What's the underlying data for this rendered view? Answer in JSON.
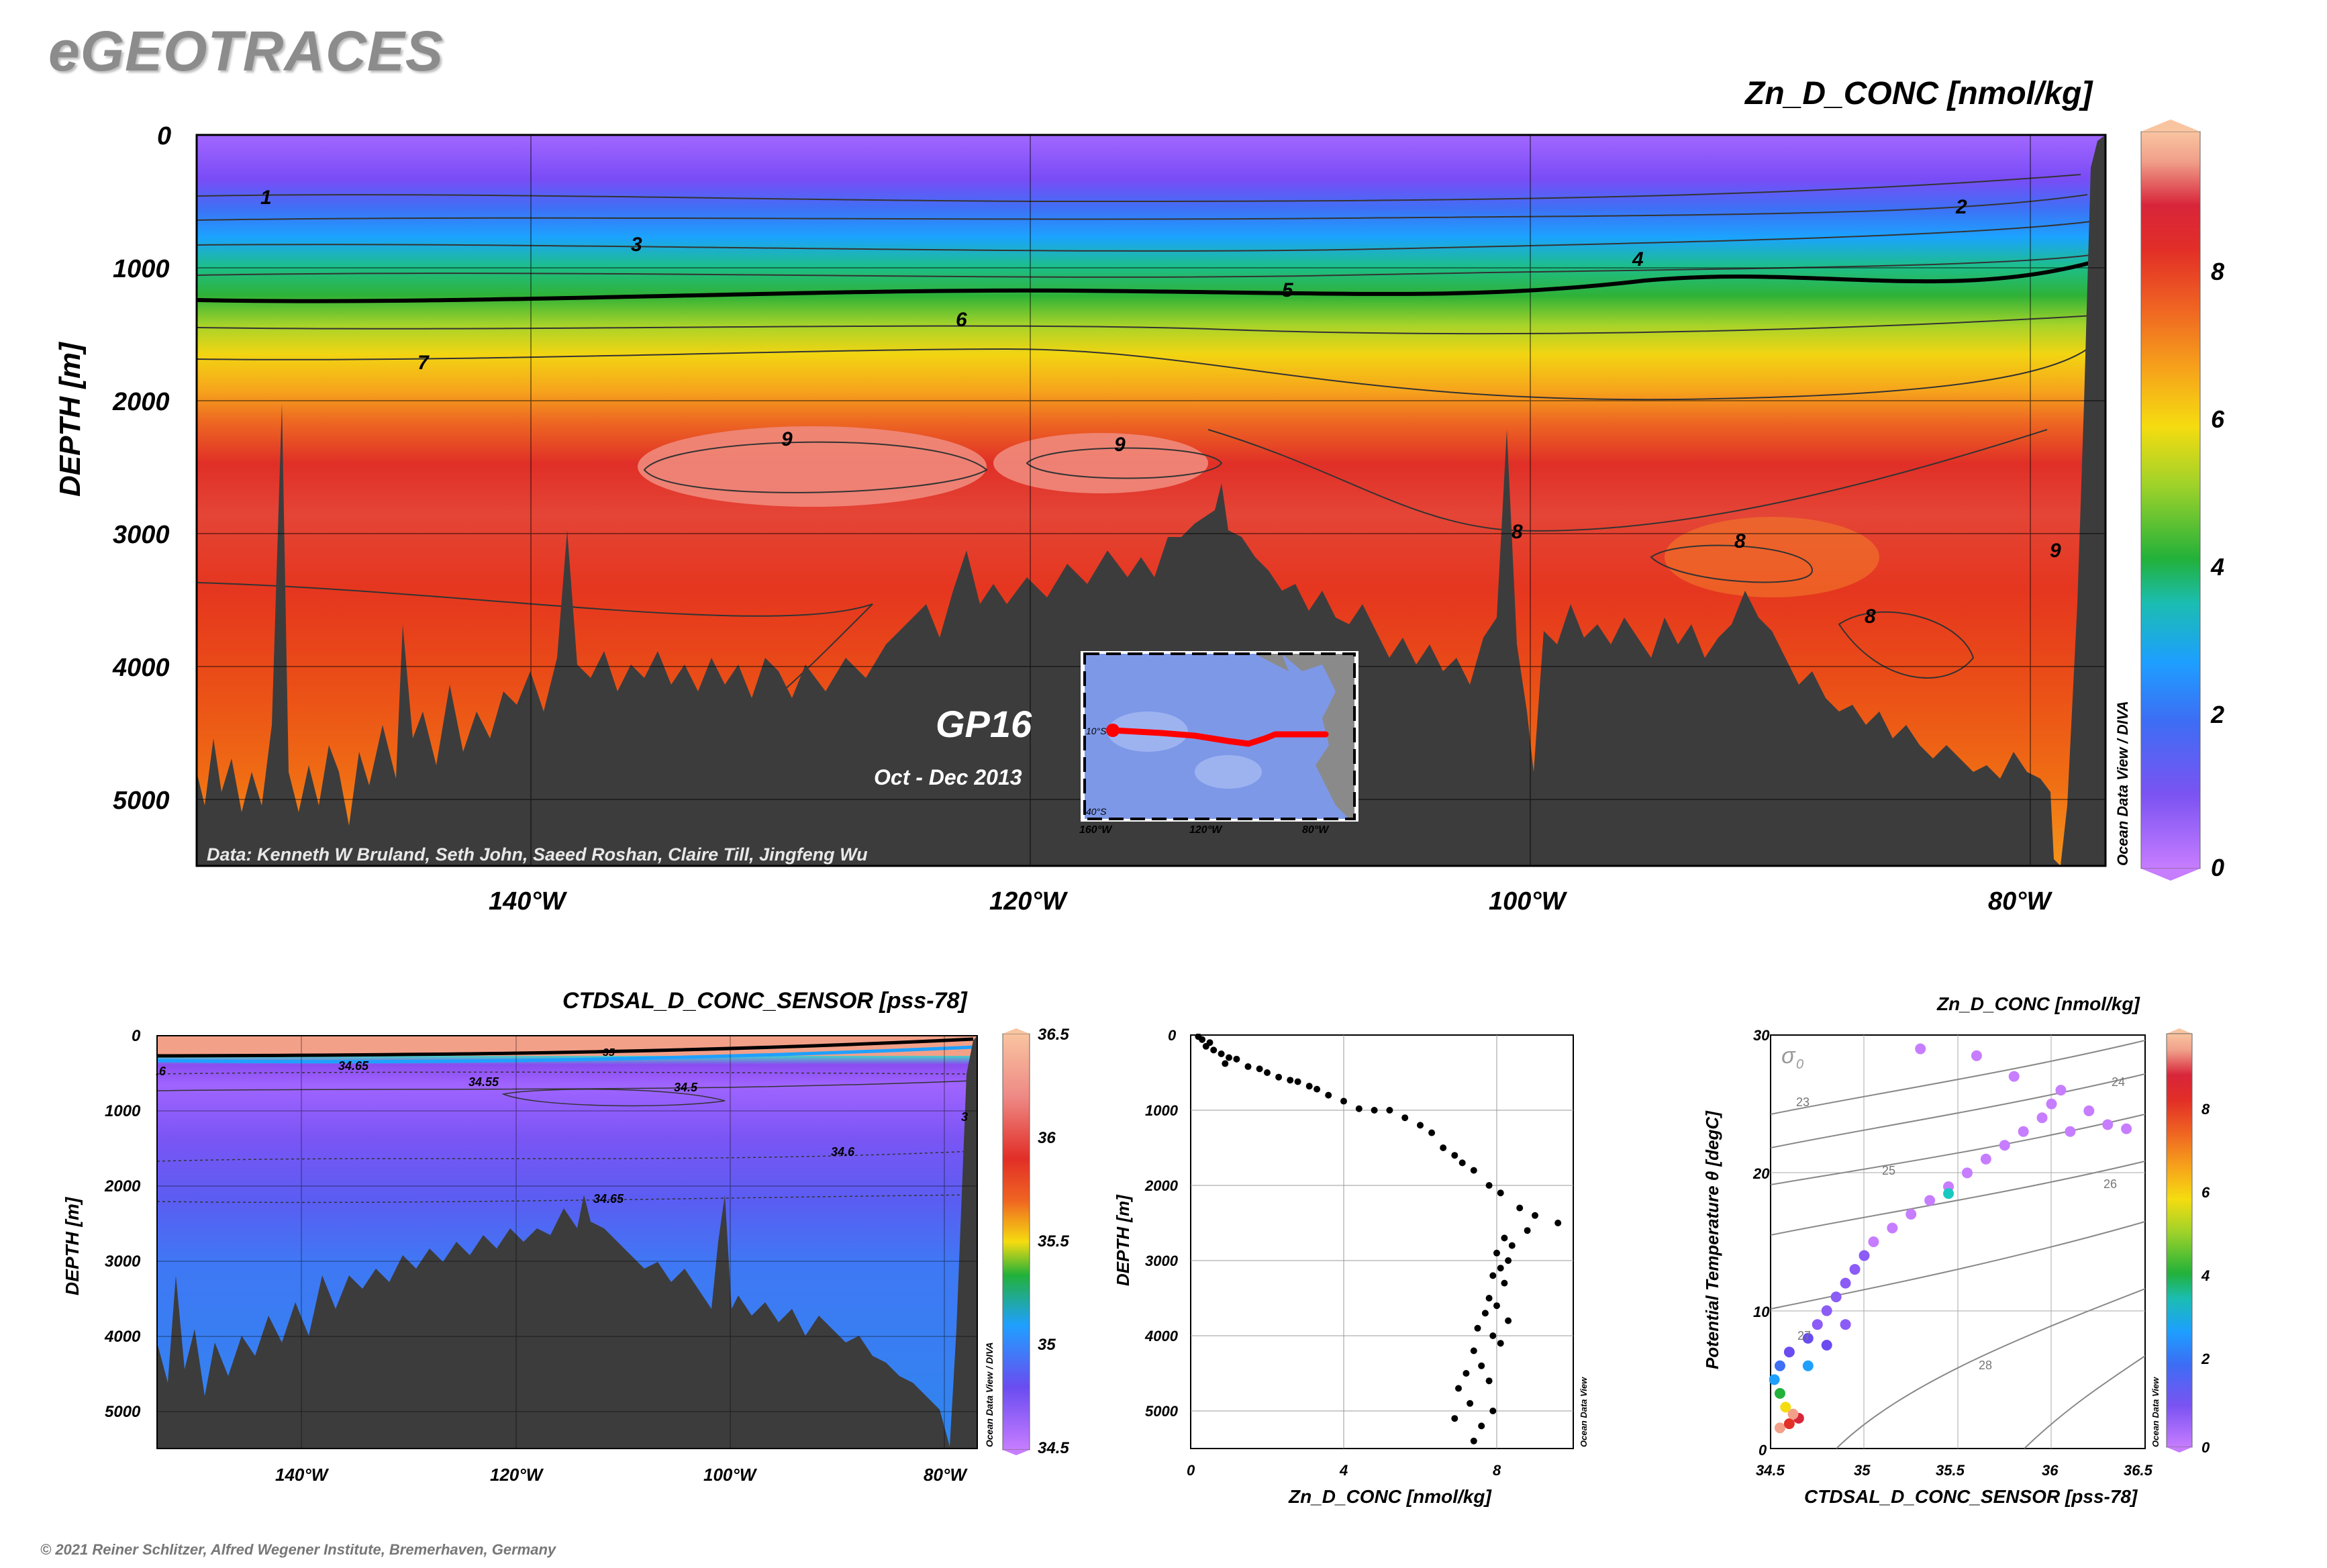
{
  "brand": "eGEOTRACES",
  "footer": "© 2021 Reiner Schlitzer, Alfred Wegener Institute, Bremerhaven, Germany",
  "colors": {
    "bathymetry": "#3c3c3c",
    "cmap": [
      "#c77dff",
      "#8b5cf6",
      "#6a4cf0",
      "#3f6ff5",
      "#1fa0ff",
      "#19c9c0",
      "#22b13a",
      "#9fd22a",
      "#f5dc10",
      "#f7a51a",
      "#f06a22",
      "#e33127",
      "#d8253a",
      "#f2a08a",
      "#f9c4a0"
    ]
  },
  "main": {
    "title": "Zn_D_CONC [nmol/kg]",
    "ylabel": "DEPTH [m]",
    "credit": "Data: Kenneth W Bruland, Seth John, Saeed Roshan, Claire Till, Jingfeng Wu",
    "cruise": "GP16",
    "dates": "Oct - Dec 2013",
    "side_text": "Ocean Data View / DIVA",
    "yticks": [
      "0",
      "1000",
      "2000",
      "3000",
      "4000",
      "5000"
    ],
    "xticks": [
      "140°W",
      "120°W",
      "100°W",
      "80°W"
    ],
    "cbar_ticks": [
      "0",
      "2",
      "4",
      "6",
      "8"
    ],
    "contour_labels": [
      "1",
      "2",
      "3",
      "4",
      "5",
      "6",
      "7",
      "8",
      "9"
    ],
    "inset": {
      "lat_labels": [
        "10°S",
        "40°S"
      ],
      "lon_labels": [
        "160°W",
        "120°W",
        "80°W"
      ],
      "side_text": "Ocean Data View"
    }
  },
  "salinity": {
    "title": "CTDSAL_D_CONC_SENSOR [pss-78]",
    "ylabel": "DEPTH [m]",
    "side_text": "Ocean Data View / DIVA",
    "yticks": [
      "0",
      "1000",
      "2000",
      "3000",
      "4000",
      "5000"
    ],
    "xticks": [
      "140°W",
      "120°W",
      "100°W",
      "80°W"
    ],
    "cbar_ticks": [
      "34.5",
      "35",
      "35.5",
      "36",
      "36.5"
    ],
    "contour_labels": [
      "34.65",
      "34.55",
      "34.5",
      "34.6",
      "34.65",
      "35",
      "3",
      ".6"
    ]
  },
  "profile": {
    "xlabel": "Zn_D_CONC [nmol/kg]",
    "ylabel": "DEPTH [m]",
    "side_text": "Ocean Data View",
    "yticks": [
      "0",
      "1000",
      "2000",
      "3000",
      "4000",
      "5000"
    ],
    "xticks": [
      "0",
      "4",
      "8"
    ]
  },
  "ts": {
    "title": "Zn_D_CONC [nmol/kg]",
    "xlabel": "CTDSAL_D_CONC_SENSOR [pss-78]",
    "ylabel": "Potential Temperature θ [degC]",
    "side_text": "Ocean Data View",
    "sigma_label": "σ",
    "sigma_sub": "0",
    "isopycnal_labels": [
      "23",
      "24",
      "25",
      "26",
      "27",
      "28"
    ],
    "xticks": [
      "34.5",
      "35",
      "35.5",
      "36",
      "36.5"
    ],
    "yticks": [
      "0",
      "10",
      "20",
      "30"
    ],
    "cbar_ticks": [
      "0",
      "2",
      "4",
      "6",
      "8"
    ]
  },
  "chart_data": [
    {
      "type": "heatmap",
      "title": "Zn_D_CONC [nmol/kg]",
      "ylabel": "DEPTH [m]",
      "xlim": [
        -155,
        -77
      ],
      "ylim": [
        5500,
        0
      ],
      "x_ticks": [
        "140°W",
        "120°W",
        "100°W",
        "80°W"
      ],
      "y_ticks": [
        0,
        1000,
        2000,
        3000,
        4000,
        5000
      ],
      "colorbar_range": [
        0,
        10
      ],
      "contours": [
        {
          "level": 1,
          "depth_m": 470
        },
        {
          "level": 2,
          "depth_m": 560
        },
        {
          "level": 3,
          "depth_m": 820
        },
        {
          "level": 4,
          "depth_m": 1000
        },
        {
          "level": 5,
          "depth_m": 1180
        },
        {
          "level": 6,
          "depth_m": 1430
        },
        {
          "level": 7,
          "depth_m": 1700
        },
        {
          "level": 8,
          "depth_m": 3000
        },
        {
          "level": 9,
          "depth_m": 2450
        }
      ],
      "depth_profile_zn": [
        {
          "depth": 0,
          "zn": 0.2
        },
        {
          "depth": 500,
          "zn": 1.0
        },
        {
          "depth": 800,
          "zn": 3.0
        },
        {
          "depth": 1000,
          "zn": 4.0
        },
        {
          "depth": 1200,
          "zn": 5.0
        },
        {
          "depth": 1500,
          "zn": 6.2
        },
        {
          "depth": 1800,
          "zn": 7.0
        },
        {
          "depth": 2500,
          "zn": 9.0
        },
        {
          "depth": 3200,
          "zn": 8.3
        },
        {
          "depth": 4200,
          "zn": 7.6
        },
        {
          "depth": 5000,
          "zn": 7.2
        }
      ]
    },
    {
      "type": "heatmap",
      "title": "CTDSAL_D_CONC_SENSOR [pss-78]",
      "ylabel": "DEPTH [m]",
      "xlim": [
        -155,
        -77
      ],
      "ylim": [
        5500,
        0
      ],
      "colorbar_range": [
        34.5,
        36.5
      ],
      "contours": [
        {
          "level": 34.65,
          "depth_m": 400
        },
        {
          "level": 34.55,
          "depth_m": 600
        },
        {
          "level": 34.5,
          "depth_m": 800
        },
        {
          "level": 34.6,
          "depth_m": 1500
        },
        {
          "level": 34.65,
          "depth_m": 2200
        }
      ]
    },
    {
      "type": "scatter",
      "xlabel": "Zn_D_CONC [nmol/kg]",
      "ylabel": "DEPTH [m]",
      "xlim": [
        0,
        10
      ],
      "ylim": [
        5500,
        0
      ],
      "points": [
        [
          0.2,
          20
        ],
        [
          0.3,
          60
        ],
        [
          0.5,
          100
        ],
        [
          0.4,
          150
        ],
        [
          0.6,
          200
        ],
        [
          0.8,
          250
        ],
        [
          1.0,
          300
        ],
        [
          1.2,
          320
        ],
        [
          0.9,
          380
        ],
        [
          1.5,
          420
        ],
        [
          1.8,
          450
        ],
        [
          2.0,
          500
        ],
        [
          2.3,
          560
        ],
        [
          2.6,
          600
        ],
        [
          2.8,
          620
        ],
        [
          3.1,
          680
        ],
        [
          3.3,
          720
        ],
        [
          3.6,
          800
        ],
        [
          4.0,
          880
        ],
        [
          4.4,
          980
        ],
        [
          4.8,
          1000
        ],
        [
          5.2,
          1000
        ],
        [
          5.6,
          1100
        ],
        [
          6.0,
          1200
        ],
        [
          6.3,
          1300
        ],
        [
          6.6,
          1500
        ],
        [
          6.9,
          1600
        ],
        [
          7.1,
          1700
        ],
        [
          7.4,
          1800
        ],
        [
          7.8,
          2000
        ],
        [
          8.1,
          2100
        ],
        [
          8.6,
          2300
        ],
        [
          9.0,
          2400
        ],
        [
          9.6,
          2500
        ],
        [
          8.8,
          2600
        ],
        [
          8.2,
          2700
        ],
        [
          8.4,
          2800
        ],
        [
          8.0,
          2900
        ],
        [
          8.3,
          3000
        ],
        [
          8.1,
          3100
        ],
        [
          7.9,
          3200
        ],
        [
          8.2,
          3300
        ],
        [
          7.8,
          3500
        ],
        [
          8.0,
          3600
        ],
        [
          7.7,
          3700
        ],
        [
          8.3,
          3800
        ],
        [
          7.5,
          3900
        ],
        [
          7.9,
          4000
        ],
        [
          8.1,
          4100
        ],
        [
          7.4,
          4200
        ],
        [
          7.6,
          4400
        ],
        [
          7.2,
          4500
        ],
        [
          7.8,
          4600
        ],
        [
          7.0,
          4700
        ],
        [
          7.3,
          4900
        ],
        [
          7.9,
          5000
        ],
        [
          6.9,
          5100
        ],
        [
          7.6,
          5200
        ],
        [
          7.4,
          5400
        ]
      ]
    },
    {
      "type": "scatter",
      "xlabel": "CTDSAL_D_CONC_SENSOR [pss-78]",
      "ylabel": "Potential Temperature θ [degC]",
      "xlim": [
        34.5,
        36.5
      ],
      "ylim": [
        0,
        30
      ],
      "colorbar_range": [
        0,
        10
      ],
      "points": [
        [
          34.55,
          1.5,
          9
        ],
        [
          34.6,
          1.8,
          8
        ],
        [
          34.65,
          2.2,
          8.5
        ],
        [
          34.62,
          2.5,
          9
        ],
        [
          34.58,
          3,
          6
        ],
        [
          34.55,
          4,
          4
        ],
        [
          34.52,
          5,
          3
        ],
        [
          34.55,
          6,
          2
        ],
        [
          34.6,
          7,
          1.5
        ],
        [
          34.7,
          8,
          1.2
        ],
        [
          34.75,
          9,
          1
        ],
        [
          34.8,
          10,
          0.8
        ],
        [
          34.85,
          11,
          0.6
        ],
        [
          34.9,
          12,
          0.5
        ],
        [
          34.95,
          13,
          0.5
        ],
        [
          35.0,
          14,
          0.4
        ],
        [
          35.05,
          15,
          0.3
        ],
        [
          35.15,
          16,
          0.3
        ],
        [
          35.25,
          17,
          0.3
        ],
        [
          35.35,
          18,
          0.3
        ],
        [
          35.45,
          19,
          0.2
        ],
        [
          35.55,
          20,
          0.3
        ],
        [
          35.65,
          21,
          0.2
        ],
        [
          35.75,
          22,
          0.2
        ],
        [
          35.85,
          23,
          0.2
        ],
        [
          35.95,
          24,
          0.2
        ],
        [
          36.0,
          25,
          0.2
        ],
        [
          36.05,
          26,
          0.1
        ],
        [
          36.1,
          23,
          0.2
        ],
        [
          36.2,
          24.5,
          0.3
        ],
        [
          36.3,
          23.5,
          0.2
        ],
        [
          35.6,
          28.5,
          0.2
        ],
        [
          35.3,
          29,
          0.2
        ],
        [
          35.8,
          27,
          0.2
        ],
        [
          34.9,
          9,
          1.0
        ],
        [
          34.7,
          6,
          2.5
        ],
        [
          34.8,
          7.5,
          1.5
        ],
        [
          36.4,
          23.2,
          0.2
        ],
        [
          35.45,
          18.5,
          3.5
        ]
      ]
    }
  ]
}
